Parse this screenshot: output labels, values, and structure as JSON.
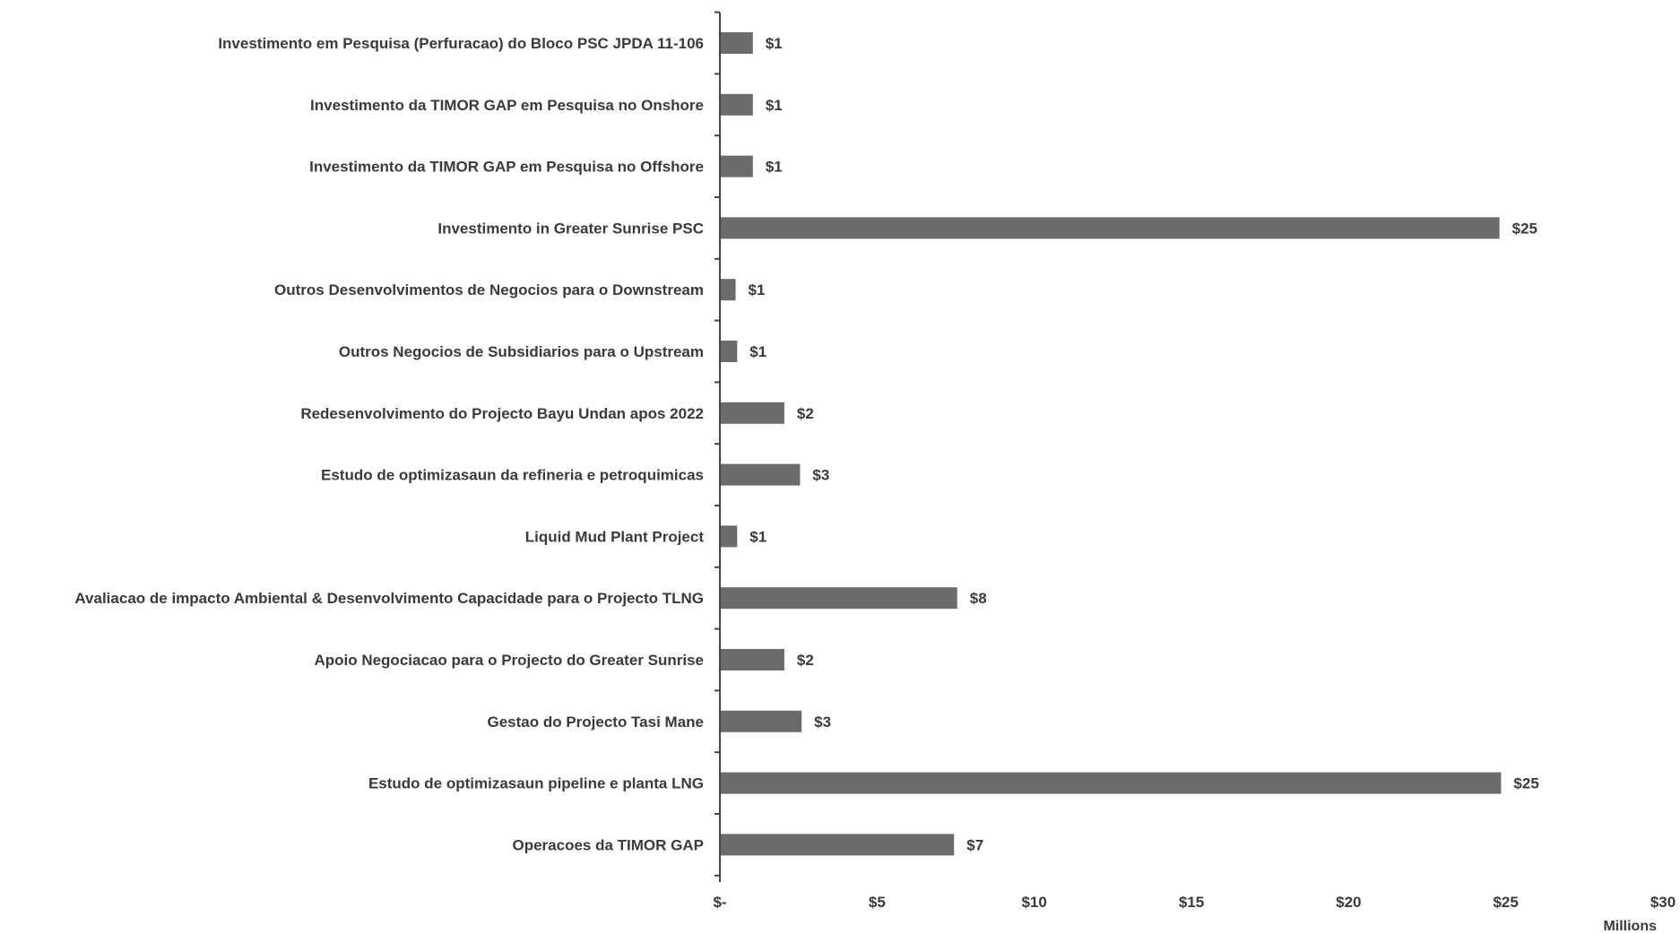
{
  "chart_data": {
    "type": "bar",
    "orientation": "horizontal",
    "categories": [
      "Investimento em Pesquisa (Perfuracao) do Bloco PSC JPDA 11-106",
      "Investimento da TIMOR GAP em Pesquisa no Onshore",
      "Investimento da TIMOR GAP em Pesquisa no Offshore",
      "Investimento in Greater Sunrise PSC",
      "Outros Desenvolvimentos de Negocios para o Downstream",
      "Outros Negocios de Subsidiarios para o Upstream",
      "Redesenvolvimento do Projecto Bayu Undan apos 2022",
      "Estudo de optimizasaun da refineria e petroquimicas",
      "Liquid Mud Plant Project",
      "Avaliacao de impacto Ambiental & Desenvolvimento Capacidade para o Projecto TLNG",
      "Apoio Negociacao para o Projecto do Greater Sunrise",
      "Gestao do Projecto Tasi Mane",
      "Estudo de optimizasaun pipeline e planta LNG",
      "Operacoes da TIMOR GAP"
    ],
    "values": [
      1.05,
      1.05,
      1.05,
      24.8,
      0.5,
      0.55,
      2.05,
      2.55,
      0.55,
      7.55,
      2.05,
      2.6,
      24.85,
      7.45
    ],
    "value_labels": [
      "$1",
      "$1",
      "$1",
      "$25",
      "$1",
      "$1",
      "$2",
      "$3",
      "$1",
      "$8",
      "$2",
      "$3",
      "$25",
      "$7"
    ],
    "xlim": [
      0,
      30
    ],
    "xticks": [
      0,
      5,
      10,
      15,
      20,
      25,
      30
    ],
    "xtick_labels": [
      "$-",
      "$5",
      "$10",
      "$15",
      "$20",
      "$25",
      "$30"
    ],
    "x_unit": "Millions",
    "title": "",
    "xlabel": "",
    "ylabel": "",
    "grid": false,
    "colors": {
      "bar": "#6b6b6b",
      "text": "#3a3a3a",
      "axis": "#444444"
    }
  }
}
